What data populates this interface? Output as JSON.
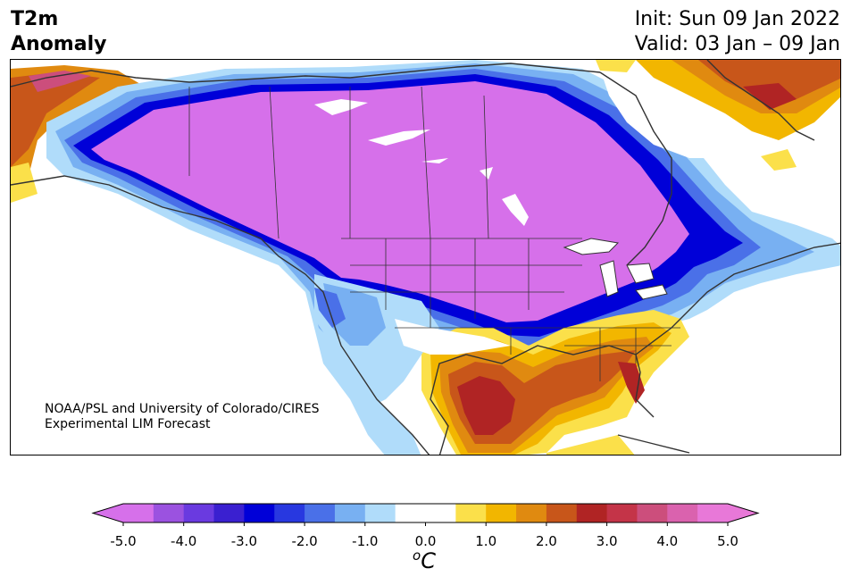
{
  "header": {
    "title_line1": "T2m",
    "title_line2": "Anomaly",
    "init": "Init: Sun 09 Jan 2022",
    "valid": "Valid: 03 Jan – 09 Jan"
  },
  "credit": {
    "line1": "NOAA/PSL and University of Colorado/CIRES",
    "line2": "Experimental LIM Forecast"
  },
  "colorbar": {
    "unit_prefix": "o",
    "unit_letter": "C",
    "tick_labels": [
      "-5.0",
      "-4.0",
      "-3.0",
      "-2.0",
      "-1.0",
      "0.0",
      "1.0",
      "2.0",
      "3.0",
      "4.0",
      "5.0"
    ],
    "colors": [
      "#d670ea",
      "#9b52e0",
      "#6a3ae0",
      "#3a20d0",
      "#0000d8",
      "#2838e0",
      "#4a70e8",
      "#78b0f2",
      "#b0dcfa",
      "#ffffff",
      "#ffffff",
      "#fbe04a",
      "#f2b600",
      "#e08a10",
      "#c8561a",
      "#b02424",
      "#c43448",
      "#cc4e7c",
      "#da62ae",
      "#e878d8"
    ],
    "extend_low": "#d670ea",
    "extend_high": "#e878d8"
  },
  "colors": {
    "purple": "#d670ea",
    "deep_blue": "#0000d8",
    "blue": "#2838e0",
    "mid_blue": "#4a70e8",
    "light_blue": "#78b0f2",
    "pale_blue": "#b0dcfa",
    "yellow": "#fbe04a",
    "orange": "#f2b600",
    "dark_orange": "#e08a10",
    "burnt": "#c8561a",
    "red": "#b02424",
    "border": "#333333"
  }
}
